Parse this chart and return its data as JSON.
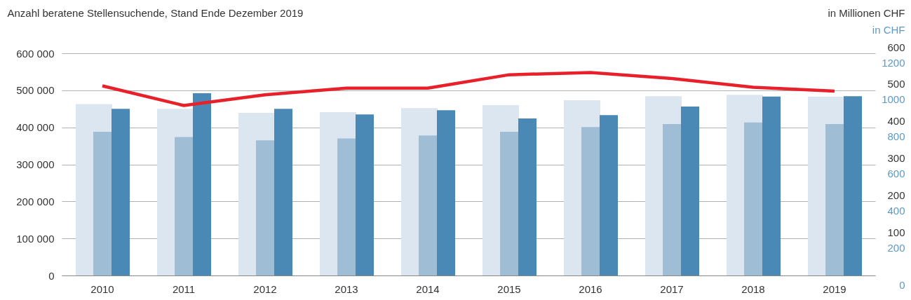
{
  "chart_data": {
    "type": "bar",
    "ylabel": "Anzahl beratene Stellensuchende, Stand Ende Dezember 2019",
    "y2label": "in Millionen CHF",
    "y3label": "in CHF",
    "categories": [
      "2010",
      "2011",
      "2012",
      "2013",
      "2014",
      "2015",
      "2016",
      "2017",
      "2018",
      "2019"
    ],
    "series": [
      {
        "color": "#dce6f0",
        "values": [
          463000,
          450000,
          439000,
          441000,
          452000,
          460000,
          473000,
          484000,
          488000,
          483000
        ]
      },
      {
        "color": "#a0bdd6",
        "axis": "y2",
        "values": [
          388,
          374,
          365,
          370,
          378,
          388,
          401,
          409,
          413,
          409
        ]
      },
      {
        "color": "#4a89b5",
        "axis": "y2",
        "values": [
          450,
          492,
          450,
          435,
          446,
          424,
          433,
          456,
          483,
          484
        ]
      },
      {
        "type": "line",
        "color": "#e8202a",
        "axis": "y3",
        "values": [
          1024,
          918,
          976,
          1012,
          1012,
          1084,
          1096,
          1064,
          1016,
          996
        ]
      }
    ],
    "ylim": [
      0,
      600000
    ],
    "yticks": [
      0,
      {
        "value": 100000,
        "label": "100 000"
      },
      {
        "value": 200000,
        "label": "200 000"
      },
      {
        "value": 300000,
        "label": "300 000"
      },
      {
        "value": 400000,
        "label": "400 000"
      },
      {
        "value": 500000,
        "label": "500 000"
      },
      {
        "value": 600000,
        "label": "600 000"
      }
    ],
    "y2lim": [
      0,
      600
    ],
    "y2ticks": [
      100,
      200,
      300,
      400,
      500,
      600
    ],
    "y3lim": [
      0,
      1200
    ],
    "y3ticks": [
      0,
      200,
      400,
      600,
      800,
      1000,
      1200
    ],
    "grid": "y"
  }
}
